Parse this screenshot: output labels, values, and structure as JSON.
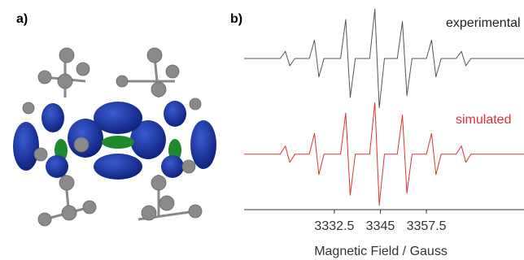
{
  "panel_labels": [
    "a)",
    "b)"
  ],
  "chart_data": {
    "type": "line",
    "x_label": "Magnetic Field / Gauss",
    "x": [
      3308,
      3317.8,
      3319.2,
      3320.4,
      3321.8,
      3325.7,
      3327.1,
      3328.3,
      3329.7,
      3334.2,
      3335.6,
      3336.8,
      3338.2,
      3342.1,
      3343.5,
      3344.7,
      3346.1,
      3349.6,
      3351,
      3352.2,
      3353.6,
      3357.5,
      3358.9,
      3360.1,
      3361.5,
      3365.6,
      3367,
      3368.2,
      3369.6,
      3384
    ],
    "xlim": [
      3308,
      3384
    ],
    "xticks": [
      3332.5,
      3345,
      3357.5
    ],
    "ylim": [
      0,
      100
    ],
    "series": [
      {
        "name": "experimental",
        "color": "#555555",
        "values": [
          73.5,
          73.5,
          77,
          70,
          73.5,
          73.5,
          82.5,
          64.5,
          73.5,
          73.5,
          92.5,
          54.5,
          73.5,
          73.5,
          97.5,
          49.5,
          73.5,
          73.5,
          91.5,
          55.5,
          73.5,
          73.5,
          82.5,
          64.5,
          73.5,
          73.5,
          77,
          70,
          73.5,
          73.5
        ]
      },
      {
        "name": "simulated",
        "color": "#e03030",
        "values": [
          27,
          27,
          31,
          23,
          27,
          27,
          37,
          17,
          27,
          27,
          47,
          7,
          27,
          27,
          52,
          2,
          27,
          27,
          46,
          8,
          27,
          27,
          37,
          17,
          27,
          27,
          31,
          23,
          27,
          27
        ]
      }
    ]
  }
}
